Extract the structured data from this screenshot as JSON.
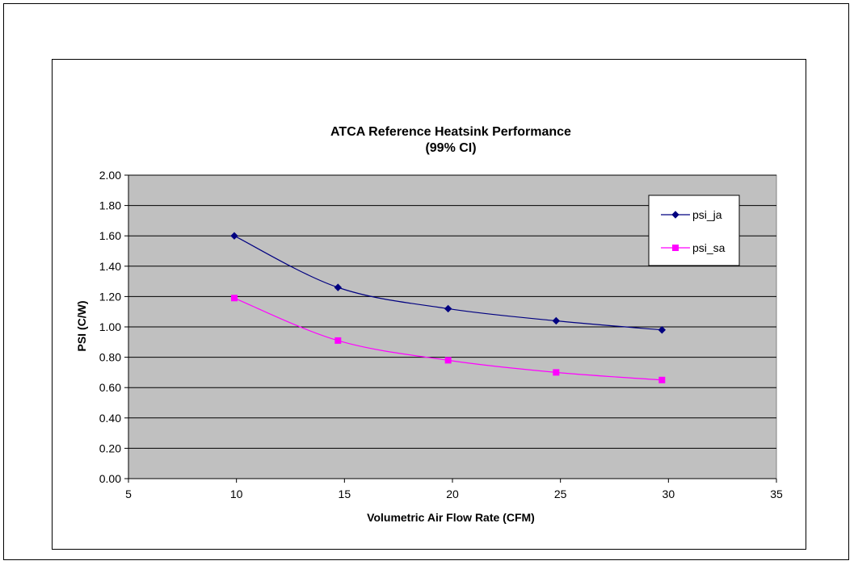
{
  "chart_data": {
    "type": "line",
    "title": [
      "ATCA Reference Heatsink Performance",
      "(99% CI)"
    ],
    "xlabel": "Volumetric Air Flow Rate (CFM)",
    "ylabel": "PSI (C/W)",
    "xlim": [
      5,
      35
    ],
    "ylim": [
      0,
      2
    ],
    "xticks": [
      5,
      10,
      15,
      20,
      25,
      30,
      35
    ],
    "yticks": [
      0,
      0.2,
      0.4,
      0.6,
      0.8,
      1.0,
      1.2,
      1.4,
      1.6,
      1.8,
      2.0
    ],
    "xtick_labels": [
      "5",
      "10",
      "15",
      "20",
      "25",
      "30",
      "35"
    ],
    "ytick_labels": [
      "0.00",
      "0.20",
      "0.40",
      "0.60",
      "0.80",
      "1.00",
      "1.20",
      "1.40",
      "1.60",
      "1.80",
      "2.00"
    ],
    "grid": "horizontal",
    "legend": "right",
    "plot_background": "#c0c0c0",
    "series": [
      {
        "name": "psi_ja",
        "color": "#000080",
        "marker": "diamond",
        "x": [
          9.9,
          14.7,
          19.8,
          24.8,
          29.7
        ],
        "y": [
          1.6,
          1.26,
          1.12,
          1.04,
          0.98
        ]
      },
      {
        "name": "psi_sa",
        "color": "#ff00ff",
        "marker": "square",
        "x": [
          9.9,
          14.7,
          19.8,
          24.8,
          29.7
        ],
        "y": [
          1.19,
          0.91,
          0.78,
          0.7,
          0.65
        ]
      }
    ]
  }
}
